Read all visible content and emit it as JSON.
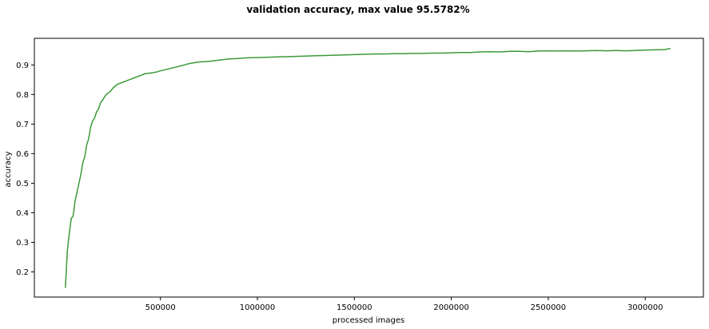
{
  "chart_data": {
    "type": "line",
    "title": "validation accuracy, max value 95.5782%",
    "xlabel": "processed images",
    "ylabel": "accuracy",
    "xlim": [
      -150000,
      3300000
    ],
    "ylim": [
      0.115,
      0.99
    ],
    "x_ticks": [
      500000,
      1000000,
      1500000,
      2000000,
      2500000,
      3000000
    ],
    "x_tick_labels": [
      "500000",
      "1000000",
      "1500000",
      "2000000",
      "2500000",
      "3000000"
    ],
    "y_ticks": [
      0.2,
      0.3,
      0.4,
      0.5,
      0.6,
      0.7,
      0.8,
      0.9
    ],
    "y_tick_labels": [
      "0.2",
      "0.3",
      "0.4",
      "0.5",
      "0.6",
      "0.7",
      "0.8",
      "0.9"
    ],
    "grid": false,
    "line_color": "#3a9a3a",
    "series": [
      {
        "x": [
          10000,
          20000,
          30000,
          40000,
          50000,
          60000,
          70000,
          80000,
          90000,
          100000,
          110000,
          120000,
          130000,
          140000,
          150000,
          160000,
          170000,
          180000,
          190000,
          200000,
          220000,
          240000,
          260000,
          280000,
          300000,
          320000,
          340000,
          360000,
          380000,
          400000,
          420000,
          440000,
          460000,
          480000,
          500000,
          550000,
          600000,
          650000,
          700000,
          750000,
          800000,
          850000,
          900000,
          950000,
          1000000,
          1050000,
          1100000,
          1150000,
          1200000,
          1250000,
          1300000,
          1350000,
          1400000,
          1450000,
          1500000,
          1550000,
          1600000,
          1650000,
          1700000,
          1750000,
          1800000,
          1850000,
          1900000,
          1950000,
          2000000,
          2050000,
          2100000,
          2150000,
          2200000,
          2250000,
          2300000,
          2350000,
          2400000,
          2450000,
          2500000,
          2550000,
          2600000,
          2650000,
          2700000,
          2750000,
          2800000,
          2850000,
          2900000,
          2950000,
          3000000,
          3050000,
          3100000,
          3130000
        ],
        "y": [
          0.146,
          0.27,
          0.33,
          0.38,
          0.39,
          0.44,
          0.47,
          0.5,
          0.53,
          0.57,
          0.59,
          0.63,
          0.65,
          0.69,
          0.71,
          0.72,
          0.74,
          0.75,
          0.77,
          0.78,
          0.8,
          0.81,
          0.825,
          0.835,
          0.84,
          0.845,
          0.85,
          0.855,
          0.86,
          0.865,
          0.87,
          0.872,
          0.874,
          0.876,
          0.88,
          0.888,
          0.896,
          0.905,
          0.91,
          0.912,
          0.916,
          0.92,
          0.922,
          0.924,
          0.925,
          0.926,
          0.927,
          0.928,
          0.929,
          0.93,
          0.931,
          0.932,
          0.933,
          0.934,
          0.935,
          0.936,
          0.937,
          0.937,
          0.938,
          0.938,
          0.939,
          0.939,
          0.94,
          0.94,
          0.941,
          0.942,
          0.942,
          0.944,
          0.945,
          0.944,
          0.946,
          0.946,
          0.945,
          0.947,
          0.948,
          0.947,
          0.948,
          0.947,
          0.948,
          0.949,
          0.948,
          0.949,
          0.948,
          0.949,
          0.95,
          0.951,
          0.952,
          0.956
        ]
      }
    ]
  }
}
